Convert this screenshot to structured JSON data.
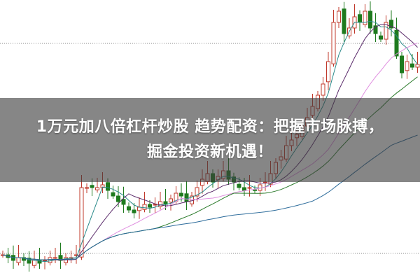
{
  "headline": {
    "line1": "1万元加八倍杠杆炒股 趋势配资：把握市场脉搏，",
    "line2": "掘金投资新机遇！"
  },
  "chart_data": {
    "type": "candlestick",
    "closes": [
      9,
      8,
      7,
      8,
      7,
      6,
      7,
      6,
      7,
      8,
      8,
      7,
      8,
      8,
      9,
      33,
      33,
      33,
      33,
      34,
      32,
      30,
      28,
      27,
      25,
      24,
      26,
      27,
      26,
      27,
      28,
      27,
      29,
      31,
      30,
      28,
      30,
      33,
      36,
      38,
      35,
      37,
      39,
      36,
      35,
      33,
      32,
      33,
      32,
      34,
      35,
      38,
      42,
      44,
      48,
      50,
      52,
      55,
      58,
      62,
      66,
      70,
      78,
      92,
      96,
      88,
      90,
      94,
      92,
      96,
      90,
      88,
      86,
      92,
      90,
      80,
      74,
      78,
      76,
      77
    ],
    "moving_averages": [
      5,
      10,
      20,
      30,
      60
    ],
    "colors": {
      "up": "#c0392b",
      "down": "#1e7a1e",
      "ma": [
        "#2a8a8a",
        "#5a2a6a",
        "#e090e0",
        "#2a7a2a",
        "#2a6a9a"
      ],
      "grid": "#888888"
    }
  }
}
